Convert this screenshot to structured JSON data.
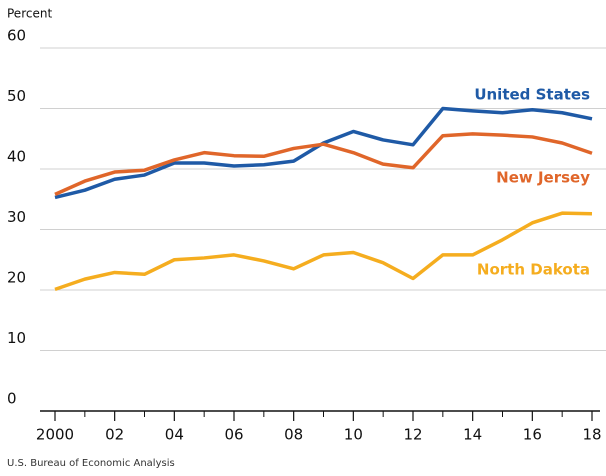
{
  "chart_data": {
    "type": "line",
    "y_label": "Percent",
    "source": "U.S. Bureau of Economic Analysis",
    "x": [
      2000,
      2001,
      2002,
      2003,
      2004,
      2005,
      2006,
      2007,
      2008,
      2009,
      2010,
      2011,
      2012,
      2013,
      2014,
      2015,
      2016,
      2017,
      2018
    ],
    "series": [
      {
        "name": "United States",
        "color": "#1f5aa6",
        "values": [
          35.3,
          36.5,
          38.3,
          39.0,
          41.0,
          41.0,
          40.5,
          40.7,
          41.3,
          44.3,
          46.2,
          44.8,
          44.0,
          50.0,
          49.6,
          49.3,
          49.8,
          49.3,
          48.3
        ]
      },
      {
        "name": "New Jersey",
        "color": "#e0662a",
        "values": [
          35.8,
          38.0,
          39.5,
          39.8,
          41.5,
          42.7,
          42.2,
          42.1,
          43.4,
          44.1,
          42.7,
          40.8,
          40.2,
          45.5,
          45.8,
          45.6,
          45.3,
          44.3,
          42.6
        ]
      },
      {
        "name": "North Dakota",
        "color": "#f5ad1f",
        "values": [
          20.1,
          21.8,
          22.9,
          22.6,
          25.0,
          25.3,
          25.8,
          24.8,
          23.5,
          25.8,
          26.2,
          24.5,
          21.9,
          25.8,
          25.8,
          28.3,
          31.1,
          32.7,
          32.6
        ]
      }
    ],
    "xlim": [
      2000,
      2018
    ],
    "xticks": [
      2000,
      {
        "value": 2002,
        "label": "02"
      },
      {
        "value": 2004,
        "label": "04"
      },
      {
        "value": 2006,
        "label": "06"
      },
      {
        "value": 2008,
        "label": "08"
      },
      {
        "value": 2010,
        "label": "10"
      },
      {
        "value": 2012,
        "label": "12"
      },
      {
        "value": 2014,
        "label": "14"
      },
      {
        "value": 2016,
        "label": "16"
      },
      {
        "value": 2018,
        "label": "18"
      }
    ],
    "xminor_ticks": [
      2001,
      2003,
      2005,
      2007,
      2009,
      2011,
      2013,
      2015,
      2017
    ],
    "ylim": [
      0,
      60
    ],
    "yticks": [
      0,
      10,
      20,
      30,
      40,
      50,
      60
    ],
    "grid": true
  }
}
